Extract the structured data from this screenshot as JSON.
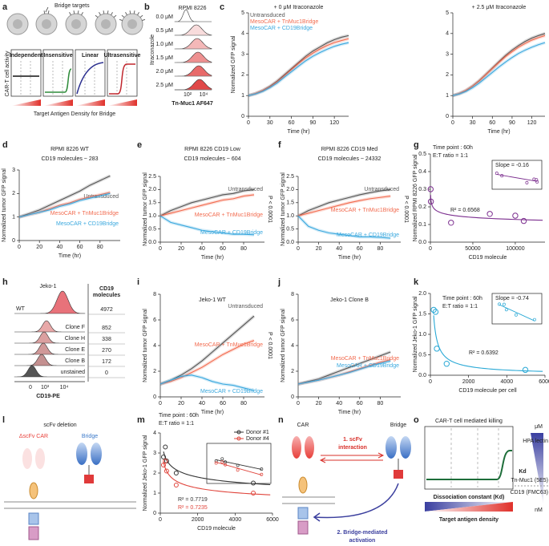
{
  "panel_labels": [
    "a",
    "b",
    "c",
    "d",
    "e",
    "f",
    "g",
    "h",
    "i",
    "j",
    "k",
    "l",
    "m",
    "n",
    "o"
  ],
  "diagrams": {
    "a": {
      "callout": "Bridge targets",
      "modes": [
        "Independent",
        "Insensitive",
        "Linear",
        "Ultrasensitive"
      ],
      "ylabel": "CAR-T cell activity",
      "xlabel": "Target Antigen Density for Bridge"
    },
    "b": {
      "title": "RPMI 8226",
      "ylabel": "Itraconazole",
      "levels": [
        "0.0 μM",
        "0.5 μM",
        "1.0 μM",
        "1.5 μM",
        "2.0 μM",
        "2.5 μM"
      ],
      "xticks": [
        "10²",
        "10⁴"
      ],
      "xlabel": "Tn-Muc1 AF647"
    },
    "h": {
      "title": "Jeko-1",
      "header": [
        "CD19",
        "molecules"
      ],
      "rows": [
        {
          "label": "WT",
          "count": 4972
        },
        {
          "label": "Clone F",
          "count": 852
        },
        {
          "label": "Clone H",
          "count": 338
        },
        {
          "label": "Clone E",
          "count": 270
        },
        {
          "label": "Clone B",
          "count": 172
        },
        {
          "label": "unstained",
          "count": 0
        }
      ],
      "xticks": [
        "0",
        "10³",
        "10⁴"
      ],
      "xlabel": "CD19-PE"
    },
    "l": {
      "title": "scFv deletion",
      "car": "ΔscFv CAR",
      "bridge": "Bridge"
    },
    "n": {
      "car": "CAR",
      "bridge": "Bridge",
      "step1": [
        "1. scFv",
        "interaction"
      ],
      "step2": [
        "2. Bridge-mediated",
        "activation"
      ]
    },
    "o": {
      "title": "CAR-T cell mediated killing",
      "top_unit": "μM",
      "bottom_unit": "nM",
      "kd": "Kd",
      "ligands": [
        "HPA lectin",
        "Tn-Muc1 (5E5)",
        "CD19 (FMC63)"
      ],
      "xlabel": "Dissociation constant (Kd)",
      "density": "Target antigen density"
    }
  },
  "chart_data": [
    {
      "type": "line",
      "title": "+ 0 μM Itraconazole",
      "xlabel": "Time (hr)",
      "ylabel": "Normalized GFP signal",
      "legend": "top-left",
      "xlim": [
        0,
        140
      ],
      "ylim": [
        0,
        5
      ],
      "xticks": [
        0,
        30,
        60,
        90,
        120
      ],
      "yticks": [
        0,
        1,
        2,
        3,
        4,
        5
      ],
      "x": [
        0,
        10,
        20,
        30,
        40,
        50,
        60,
        70,
        80,
        90,
        100,
        110,
        120,
        130,
        140
      ],
      "series": [
        {
          "name": "Untransduced",
          "color": "#555555",
          "values": [
            1,
            1.1,
            1.25,
            1.45,
            1.7,
            2,
            2.3,
            2.6,
            2.9,
            3.15,
            3.35,
            3.55,
            3.7,
            3.82,
            3.9
          ]
        },
        {
          "name": "MesoCAR + TnMuc1Bridge",
          "color": "#f26b4f",
          "values": [
            1,
            1.1,
            1.24,
            1.42,
            1.66,
            1.95,
            2.25,
            2.55,
            2.82,
            3.05,
            3.25,
            3.42,
            3.56,
            3.66,
            3.75
          ]
        },
        {
          "name": "MesoCAR + CD19Bridge",
          "color": "#3aa8de",
          "values": [
            1,
            1.08,
            1.2,
            1.38,
            1.6,
            1.88,
            2.15,
            2.42,
            2.68,
            2.9,
            3.08,
            3.24,
            3.38,
            3.48,
            3.56
          ]
        }
      ]
    },
    {
      "type": "line",
      "title": "+ 2.5 μM Itraconazole",
      "xlabel": "Time (hr)",
      "xlim": [
        0,
        140
      ],
      "ylim": [
        0,
        5
      ],
      "xticks": [
        0,
        30,
        60,
        90,
        120
      ],
      "yticks": [
        0,
        1,
        2,
        3,
        4,
        5
      ],
      "x": [
        0,
        10,
        20,
        30,
        40,
        50,
        60,
        70,
        80,
        90,
        100,
        110,
        120,
        130,
        140
      ],
      "series": [
        {
          "color": "#555555",
          "values": [
            1,
            1.1,
            1.25,
            1.46,
            1.72,
            2.02,
            2.33,
            2.64,
            2.94,
            3.2,
            3.42,
            3.62,
            3.78,
            3.9,
            4.0
          ]
        },
        {
          "color": "#f26b4f",
          "values": [
            1,
            1.1,
            1.25,
            1.45,
            1.7,
            2,
            2.3,
            2.6,
            2.88,
            3.12,
            3.34,
            3.52,
            3.68,
            3.8,
            3.9
          ]
        },
        {
          "color": "#3aa8de",
          "values": [
            1,
            1.08,
            1.2,
            1.38,
            1.6,
            1.86,
            2.12,
            2.38,
            2.62,
            2.84,
            3.04,
            3.2,
            3.34,
            3.46,
            3.56
          ]
        }
      ]
    },
    {
      "type": "line",
      "title": "RPMI 8226 WT",
      "subtitle": "CD19 molecules ~ 283",
      "xlabel": "Time (hr)",
      "ylabel": "Normalized tumor GFP signal",
      "legend": "inline",
      "xlim": [
        0,
        100
      ],
      "ylim": [
        0,
        3
      ],
      "xticks": [
        0,
        20,
        40,
        60,
        80
      ],
      "yticks": [
        0,
        1,
        2,
        3
      ],
      "x": [
        0,
        10,
        20,
        30,
        40,
        50,
        60,
        70,
        80,
        90
      ],
      "series": [
        {
          "name": "Untransduced",
          "color": "#555555",
          "values": [
            1,
            1.15,
            1.3,
            1.5,
            1.7,
            1.9,
            2.1,
            2.35,
            2.55,
            2.75
          ]
        },
        {
          "name": "MesoCAR + TnMuc1Bridge",
          "color": "#f26b4f",
          "values": [
            1,
            1.1,
            1.2,
            1.35,
            1.5,
            1.6,
            1.75,
            1.85,
            1.95,
            2.05
          ]
        },
        {
          "name": "MesoCAR + CD19Bridge",
          "color": "#3aa8de",
          "values": [
            1,
            1.1,
            1.2,
            1.3,
            1.45,
            1.55,
            1.7,
            1.8,
            1.9,
            2.0
          ]
        }
      ]
    },
    {
      "type": "line",
      "title": "RPMI 8226 CD19 Low",
      "subtitle": "CD19 molecules ~ 604",
      "xlabel": "Time (hr)",
      "ylabel": "Normalized tumor GFP signal",
      "legend": "inline",
      "significance": "P < 0.0001",
      "xlim": [
        0,
        100
      ],
      "ylim": [
        0,
        2.5
      ],
      "xticks": [
        0,
        20,
        40,
        60,
        80
      ],
      "yticks": [
        {
          "value": 0,
          "label": "0.0"
        },
        0.5,
        {
          "value": 1,
          "label": "1.0"
        },
        1.5,
        {
          "value": 2,
          "label": "2.0"
        },
        2.5
      ],
      "x": [
        0,
        10,
        20,
        30,
        40,
        50,
        60,
        70,
        80,
        90
      ],
      "series": [
        {
          "name": "Untransduced",
          "color": "#555555",
          "values": [
            1,
            1.2,
            1.35,
            1.5,
            1.6,
            1.7,
            1.8,
            1.85,
            1.95,
            2.0
          ]
        },
        {
          "name": "MesoCAR + TnMuc1Bridge",
          "color": "#f26b4f",
          "values": [
            1,
            1.1,
            1.2,
            1.3,
            1.4,
            1.5,
            1.6,
            1.65,
            1.75,
            1.8
          ]
        },
        {
          "name": "MesoCAR + CD19Bridge",
          "color": "#3aa8de",
          "values": [
            1,
            0.75,
            0.65,
            0.55,
            0.45,
            0.4,
            0.35,
            0.3,
            0.3,
            0.28
          ]
        }
      ]
    },
    {
      "type": "line",
      "title": "RPMI 8226 CD19 Med",
      "subtitle": "CD19 molecules ~ 24332",
      "xlabel": "Time (hr)",
      "ylabel": "Normalized tumor GFP signal",
      "legend": "inline",
      "significance": "P < 0.0001",
      "xlim": [
        0,
        100
      ],
      "ylim": [
        0,
        2.5
      ],
      "xticks": [
        0,
        20,
        40,
        60,
        80
      ],
      "yticks": [
        {
          "value": 0,
          "label": "0.0"
        },
        0.5,
        {
          "value": 1,
          "label": "1.0"
        },
        1.5,
        {
          "value": 2,
          "label": "2.0"
        },
        2.5
      ],
      "x": [
        0,
        10,
        20,
        30,
        40,
        50,
        60,
        70,
        80,
        90
      ],
      "series": [
        {
          "name": "Untransduced",
          "color": "#555555",
          "values": [
            1,
            1.2,
            1.35,
            1.5,
            1.6,
            1.7,
            1.8,
            1.88,
            1.95,
            2.0
          ]
        },
        {
          "name": "MesoCAR + TnMuc1Bridge",
          "color": "#f26b4f",
          "values": [
            1,
            1.1,
            1.2,
            1.3,
            1.4,
            1.5,
            1.58,
            1.65,
            1.7,
            1.75
          ]
        },
        {
          "name": "MesoCAR + CD19Bridge",
          "color": "#3aa8de",
          "values": [
            1,
            0.6,
            0.45,
            0.35,
            0.3,
            0.25,
            0.2,
            0.2,
            0.18,
            0.15
          ]
        }
      ]
    },
    {
      "type": "scatter",
      "xlabel": "CD19 molecule",
      "ylabel": "Normalized RPMI 8226 GFP signal",
      "annotations": [
        "Time point : 60h",
        "E:T ratio = 1:1"
      ],
      "fit_label": "R² = 0.6568",
      "inset": {
        "slope_label": "Slope = -0.16"
      },
      "xlim": [
        0,
        135000
      ],
      "ylim": [
        0,
        0.5
      ],
      "xticks": [
        0,
        50000,
        100000
      ],
      "yticks": [
        {
          "value": 0,
          "label": "0.0"
        },
        0.1,
        0.2,
        0.3,
        0.4,
        0.5
      ],
      "series": [
        {
          "color": "#7b2d8e",
          "x": [
            283,
            604,
            24332,
            70000,
            100000,
            110000
          ],
          "values": [
            0.3,
            0.23,
            0.11,
            0.16,
            0.15,
            0.12
          ]
        }
      ]
    },
    {
      "type": "line",
      "title": "Jeko-1 WT",
      "xlabel": "Time (hr)",
      "ylabel": "Normalized tumor GFP signal",
      "legend": "inline",
      "significance": "P < 0.0001",
      "xlim": [
        0,
        100
      ],
      "ylim": [
        0,
        8
      ],
      "xticks": [
        0,
        20,
        40,
        60,
        80
      ],
      "yticks": [
        0,
        2,
        4,
        6,
        8
      ],
      "x": [
        0,
        10,
        20,
        30,
        40,
        50,
        60,
        70,
        80,
        90
      ],
      "series": [
        {
          "name": "Untransduced",
          "color": "#555555",
          "values": [
            1,
            1.3,
            1.7,
            2.2,
            2.8,
            3.5,
            4.2,
            4.9,
            5.6,
            6.3
          ]
        },
        {
          "name": "MesoCAR + TnMuc1Bridge",
          "color": "#f26b4f",
          "values": [
            1,
            1.2,
            1.5,
            1.9,
            2.3,
            2.8,
            3.3,
            3.7,
            4.1,
            4.4
          ]
        },
        {
          "name": "MesoCAR + CD19Bridge",
          "color": "#3aa8de",
          "values": [
            1,
            1.3,
            1.6,
            1.7,
            1.5,
            1.2,
            1.0,
            0.9,
            0.7,
            0.5
          ]
        }
      ]
    },
    {
      "type": "line",
      "title": "Jeko-1 Clone B",
      "xlabel": "Time (hr)",
      "ylabel": "Normalized tumor GFP signal",
      "legend": "inline",
      "xlim": [
        0,
        100
      ],
      "ylim": [
        0,
        8
      ],
      "xticks": [
        0,
        20,
        40,
        60,
        80
      ],
      "yticks": [
        0,
        2,
        4,
        6,
        8
      ],
      "x": [
        0,
        10,
        20,
        30,
        40,
        50,
        60,
        70,
        80,
        90
      ],
      "series": [
        {
          "color": "#555555",
          "values": [
            1,
            1.2,
            1.4,
            1.7,
            2.0,
            2.3,
            2.6,
            2.9,
            3.2,
            3.5
          ]
        },
        {
          "name": "MesoCAR + TnMuc1Bridge",
          "color": "#f26b4f",
          "values": [
            1,
            1.15,
            1.3,
            1.5,
            1.7,
            1.95,
            2.2,
            2.45,
            2.7,
            2.9
          ]
        },
        {
          "name": "MesoCAR + CD19Bridge",
          "color": "#3aa8de",
          "values": [
            1,
            1.15,
            1.3,
            1.5,
            1.7,
            1.9,
            2.15,
            2.4,
            2.6,
            2.8
          ]
        }
      ]
    },
    {
      "type": "scatter",
      "xlabel": "CD19 molecule per cell",
      "ylabel": "Normalized Jeko-1 GFP signal",
      "annotations": [
        "Time point : 60h",
        "E:T ratio = 1:1"
      ],
      "fit_label": "R² = 0.6392",
      "inset": {
        "slope_label": "Slope = -0.74"
      },
      "xlim": [
        0,
        6000
      ],
      "ylim": [
        0,
        2
      ],
      "xticks": [
        0,
        2000,
        4000,
        6000
      ],
      "yticks": [
        {
          "value": 0,
          "label": "0.0"
        },
        0.5,
        {
          "value": 1,
          "label": "1.0"
        },
        1.5,
        {
          "value": 2,
          "label": "2.0"
        }
      ],
      "series": [
        {
          "color": "#2aa9d6",
          "x": [
            172,
            270,
            338,
            852,
            4972
          ],
          "values": [
            1.6,
            1.55,
            0.65,
            0.28,
            0.13
          ]
        }
      ]
    },
    {
      "type": "scatter",
      "xlabel": "CD19 molecule",
      "ylabel": "Normalized Jeko-1 GFP signal",
      "annotations": [
        "Time point : 60h",
        "E:T ratio = 1:1"
      ],
      "inset": {},
      "xlim": [
        0,
        6000
      ],
      "ylim": [
        0,
        4
      ],
      "xticks": [
        0,
        2000,
        4000,
        6000
      ],
      "yticks": [
        0,
        1,
        2,
        3,
        4
      ],
      "series": [
        {
          "name": "Donor #1",
          "color": "#333333",
          "fit_label": "R² = 0.7719",
          "x": [
            172,
            270,
            338,
            852,
            4972
          ],
          "values": [
            2.8,
            3.3,
            2.6,
            2.0,
            1.5
          ]
        },
        {
          "name": "Donor #4",
          "color": "#e0453c",
          "fit_label": "R² = 0.7235",
          "x": [
            172,
            270,
            338,
            852,
            4972
          ],
          "values": [
            2.4,
            2.6,
            2.1,
            1.4,
            1.0
          ]
        }
      ]
    }
  ]
}
